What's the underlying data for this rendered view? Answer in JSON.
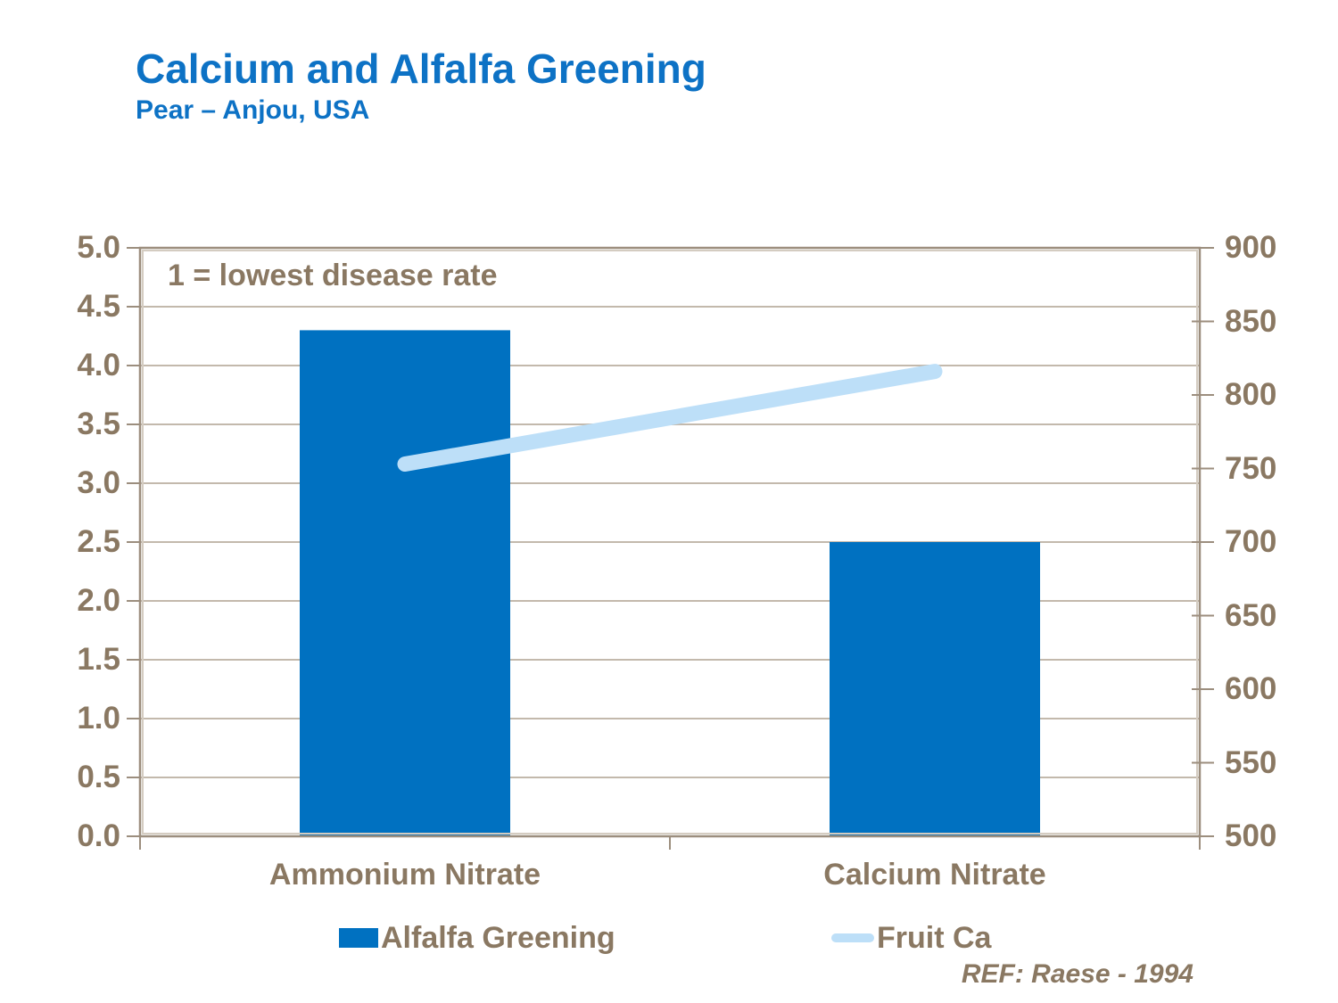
{
  "header": {
    "title": "Calcium and Alfalfa Greening",
    "subtitle": "Pear – Anjou, USA"
  },
  "footer": {
    "ref": "REF: Raese - 1994"
  },
  "colors": {
    "title_blue": "#0d72c5",
    "bar_blue": "#0071c1",
    "line_light_blue": "#bddff8",
    "text_brown": "#8a7862",
    "gridline": "#c3b9ac",
    "border_dark": "#9c8e7e",
    "border_light": "#d4ccc1"
  },
  "chart_data": {
    "type": "bar",
    "categories": [
      "Ammonium Nitrate",
      "Calcium Nitrate"
    ],
    "series": [
      {
        "name": "Alfalfa Greening",
        "type": "bar",
        "axis": "left",
        "values": [
          4.3,
          2.5
        ],
        "color": "#0071c1"
      },
      {
        "name": "Fruit Ca",
        "type": "line",
        "axis": "right",
        "values": [
          753,
          816
        ],
        "color": "#bddff8"
      }
    ],
    "annotation": "1 = lowest disease rate",
    "y_left": {
      "min": 0.0,
      "max": 5.0,
      "step": 0.5,
      "ticks": [
        "5.0",
        "4.5",
        "4.0",
        "3.5",
        "3.0",
        "2.5",
        "2.0",
        "1.5",
        "1.0",
        "0.5",
        "0.0"
      ]
    },
    "y_right": {
      "min": 500,
      "max": 900,
      "step": 50,
      "ticks": [
        "900",
        "850",
        "800",
        "750",
        "700",
        "650",
        "600",
        "550",
        "500"
      ]
    },
    "grid": true,
    "legend_position": "bottom"
  }
}
